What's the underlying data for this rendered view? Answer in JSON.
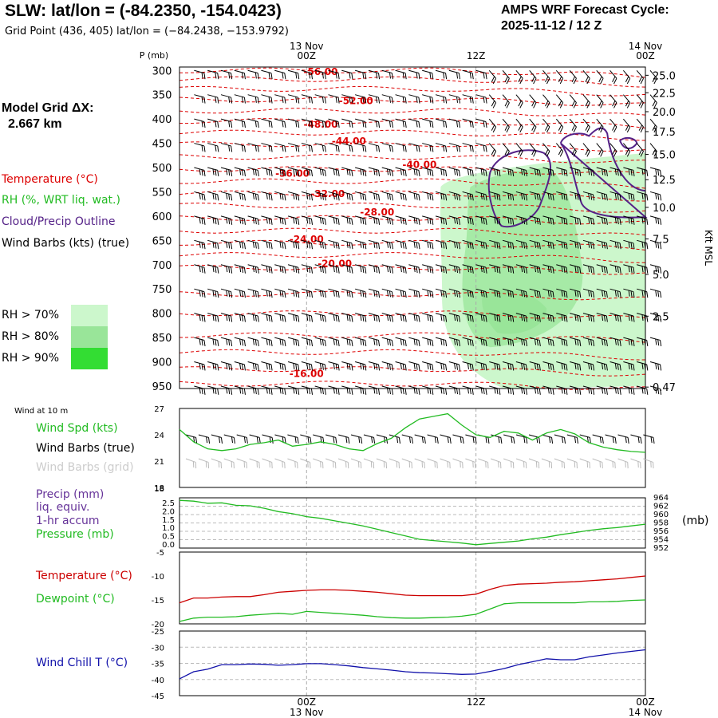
{
  "header": {
    "title": "SLW:  lat/lon = (-84.2350, -154.0423)",
    "subtitle": "Grid Point (436, 405) lat/lon = (−84.2438, −153.9792)",
    "cycle_line1": "AMPS WRF Forecast Cycle:",
    "cycle_line2": "2025-11-12 / 12  Z",
    "grid_label_line1": "Model Grid ΔX:",
    "grid_label_line2": "2.667 km"
  },
  "time_axis": {
    "ticks": [
      {
        "label": "00Z",
        "date": "13 Nov"
      },
      {
        "label": "12Z",
        "date": ""
      },
      {
        "label": "00Z",
        "date": "14 Nov"
      }
    ],
    "hours_start": -9,
    "hours_end": 24
  },
  "legend": {
    "temperature": "Temperature (°C)",
    "rh": "RH (%, WRT liq. wat.)",
    "cloud": "Cloud/Precip Outline",
    "wind": "Wind Barbs (kts) (true)",
    "rh70": "RH > 70%",
    "rh80": "RH > 80%",
    "rh90": "RH > 90%",
    "colors": {
      "rh70": "#ccf7cc",
      "rh80": "#99e599",
      "rh90": "#33dd33",
      "temp": "#dd0000",
      "rh": "#22bb22",
      "cloud": "#552288"
    }
  },
  "chart_data": [
    {
      "type": "heatmap",
      "name": "time-height cross section",
      "ylabel": "P (mb)",
      "right_label": "Kft MSL",
      "pressure_ticks": [
        "300",
        "350",
        "400",
        "450",
        "500",
        "550",
        "600",
        "650",
        "700",
        "750",
        "800",
        "850",
        "900",
        "950"
      ],
      "kft_ticks": [
        {
          "label": "25.0",
          "p": 310
        },
        {
          "label": "22.5",
          "p": 346
        },
        {
          "label": "20.0",
          "p": 385
        },
        {
          "label": "17.5",
          "p": 426
        },
        {
          "label": "15.0",
          "p": 473
        },
        {
          "label": "12.5",
          "p": 525
        },
        {
          "label": "10.0",
          "p": 582
        },
        {
          "label": "7.5",
          "p": 647
        },
        {
          "label": "5.0",
          "p": 720
        },
        {
          "label": "2.5",
          "p": 806
        },
        {
          "label": "0.47",
          "p": 952
        }
      ],
      "isotherm_labels": [
        {
          "label": "-56.00",
          "p": 303,
          "t": 1
        },
        {
          "label": "-52.00",
          "p": 363,
          "t": 3.5
        },
        {
          "label": "-48.00",
          "p": 411,
          "t": 1
        },
        {
          "label": "-44.00",
          "p": 446,
          "t": 3
        },
        {
          "label": "-40.00",
          "p": 494,
          "t": 8
        },
        {
          "label": "-36.00",
          "p": 512,
          "t": -1
        },
        {
          "label": "-32.00",
          "p": 554,
          "t": 1.5
        },
        {
          "label": "-28.00",
          "p": 592,
          "t": 5
        },
        {
          "label": "-24.00",
          "p": 648,
          "t": 0
        },
        {
          "label": "-20.00",
          "p": 698,
          "t": 2
        },
        {
          "label": "-16.00",
          "p": 925,
          "t": 0
        }
      ]
    },
    {
      "type": "line",
      "name": "surface wind",
      "title": "Wind at 10 m",
      "ylabel": "Wind Spd (kts)",
      "label2": "Wind Barbs (true)",
      "label3": "Wind Barbs (grid)",
      "yticks": [
        "27",
        "24",
        "21",
        "18"
      ],
      "ylim": [
        18,
        27
      ],
      "x": [
        -9,
        -8,
        -7,
        -6,
        -5,
        -4,
        -3,
        -2,
        -1,
        0,
        1,
        2,
        3,
        4,
        5,
        6,
        7,
        8,
        9,
        10,
        11,
        12,
        13,
        14,
        15,
        16,
        17,
        18,
        19,
        20,
        21,
        22,
        23,
        24
      ],
      "series": [
        {
          "name": "Wind Spd",
          "color": "#22bb22",
          "values": [
            24.6,
            23.2,
            22.4,
            22.2,
            22.4,
            22.9,
            23.1,
            23.4,
            22.7,
            22.9,
            23.2,
            22.9,
            22.4,
            22.2,
            23.0,
            23.6,
            24.8,
            25.8,
            26.1,
            26.4,
            25.1,
            24.0,
            23.7,
            24.4,
            24.2,
            23.4,
            24.2,
            24.6,
            24.1,
            23.1,
            22.6,
            22.3,
            22.1,
            22.0
          ]
        }
      ]
    },
    {
      "type": "line",
      "name": "precip and pressure",
      "label1": "Precip (mm)",
      "label2": "liq. equiv.",
      "label3": "1-hr accum",
      "label4": "Pressure (mb)",
      "unit_label": "(mb)",
      "yticks_left": [
        "2.5",
        "2.0",
        "1.5",
        "1.0",
        "0.5",
        "0.0"
      ],
      "yticks_right": [
        "964",
        "962",
        "960",
        "958",
        "956",
        "954",
        "952"
      ],
      "ylim_right": [
        952,
        964
      ],
      "x": [
        -9,
        -8,
        -7,
        -6,
        -5,
        -4,
        -3,
        -2,
        -1,
        0,
        1,
        2,
        3,
        4,
        5,
        6,
        7,
        8,
        9,
        10,
        11,
        12,
        13,
        14,
        15,
        16,
        17,
        18,
        19,
        20,
        21,
        22,
        23,
        24
      ],
      "series": [
        {
          "name": "Pressure",
          "color": "#22bb22",
          "values": [
            963.4,
            963.2,
            962.7,
            962.8,
            962.2,
            962.1,
            961.5,
            960.7,
            960.2,
            959.5,
            959.1,
            958.5,
            957.9,
            957.3,
            956.5,
            955.7,
            954.9,
            954.1,
            953.8,
            953.5,
            953.2,
            952.8,
            953.1,
            953.4,
            953.7,
            954.2,
            954.6,
            955.2,
            955.7,
            956.2,
            956.6,
            956.9,
            957.3,
            957.7
          ]
        }
      ]
    },
    {
      "type": "line",
      "name": "temperature and dewpoint",
      "label1": "Temperature (°C)",
      "label2": "Dewpoint (°C)",
      "yticks": [
        "-5",
        "-10",
        "-15",
        "-20"
      ],
      "ylim": [
        -20,
        -5
      ],
      "x": [
        -9,
        -8,
        -7,
        -6,
        -5,
        -4,
        -3,
        -2,
        -1,
        0,
        1,
        2,
        3,
        4,
        5,
        6,
        7,
        8,
        9,
        10,
        11,
        12,
        13,
        14,
        15,
        16,
        17,
        18,
        19,
        20,
        21,
        22,
        23,
        24
      ],
      "series": [
        {
          "name": "Temperature",
          "color": "#cc0000",
          "values": [
            -15.6,
            -14.6,
            -14.6,
            -14.4,
            -14.3,
            -14.3,
            -13.9,
            -13.4,
            -13.2,
            -13.0,
            -12.9,
            -12.9,
            -13.0,
            -13.2,
            -13.4,
            -13.7,
            -14.0,
            -14.1,
            -14.1,
            -14.1,
            -14.1,
            -13.8,
            -12.8,
            -12.0,
            -11.7,
            -11.6,
            -11.5,
            -11.3,
            -11.2,
            -11.0,
            -10.8,
            -10.6,
            -10.3,
            -10.0
          ]
        },
        {
          "name": "Dewpoint",
          "color": "#22bb22",
          "values": [
            -19.5,
            -18.8,
            -18.6,
            -18.6,
            -18.5,
            -18.2,
            -18.0,
            -17.8,
            -18.0,
            -17.4,
            -17.6,
            -17.8,
            -18.0,
            -18.2,
            -18.5,
            -18.7,
            -18.8,
            -18.8,
            -18.7,
            -18.6,
            -18.4,
            -18.0,
            -16.9,
            -15.8,
            -15.6,
            -15.6,
            -15.6,
            -15.6,
            -15.6,
            -15.4,
            -15.4,
            -15.3,
            -15.1,
            -15.0
          ]
        }
      ]
    },
    {
      "type": "line",
      "name": "wind chill",
      "label1": "Wind Chill T (°C)",
      "yticks": [
        "-25",
        "-30",
        "-35",
        "-40",
        "-45"
      ],
      "ylim": [
        -45,
        -25
      ],
      "x": [
        -9,
        -8,
        -7,
        -6,
        -5,
        -4,
        -3,
        -2,
        -1,
        0,
        1,
        2,
        3,
        4,
        5,
        6,
        7,
        8,
        9,
        10,
        11,
        12,
        13,
        14,
        15,
        16,
        17,
        18,
        19,
        20,
        21,
        22,
        23,
        24
      ],
      "series": [
        {
          "name": "Wind Chill T",
          "color": "#1111aa",
          "values": [
            -39.8,
            -37.6,
            -36.8,
            -35.4,
            -35.4,
            -35.2,
            -35.3,
            -35.6,
            -35.4,
            -35.1,
            -35.1,
            -35.4,
            -35.8,
            -36.3,
            -36.7,
            -37.1,
            -37.6,
            -37.9,
            -38.0,
            -38.2,
            -38.4,
            -38.3,
            -37.5,
            -36.6,
            -35.4,
            -34.5,
            -33.6,
            -33.9,
            -33.9,
            -33.0,
            -32.4,
            -31.8,
            -31.3,
            -30.8
          ]
        }
      ]
    }
  ]
}
